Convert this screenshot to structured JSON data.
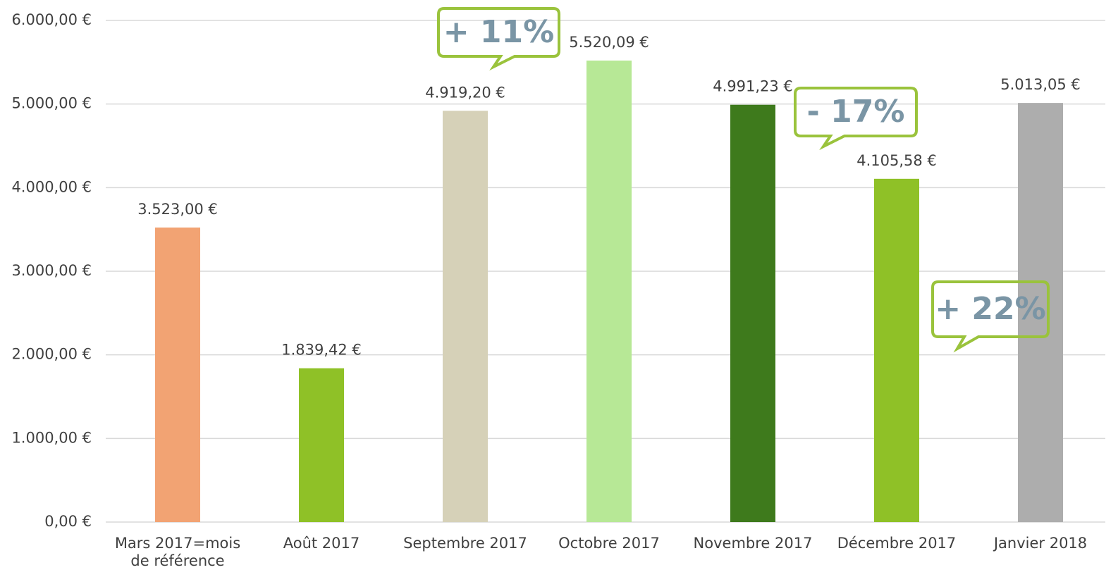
{
  "chart_data": {
    "type": "bar",
    "categories": [
      "Mars 2017=mois de référence",
      "Août 2017",
      "Septembre 2017",
      "Octobre 2017",
      "Novembre 2017",
      "Décembre 2017",
      "Janvier 2018"
    ],
    "values": [
      3523.0,
      1839.42,
      4919.2,
      5520.09,
      4991.23,
      4105.58,
      5013.05
    ],
    "value_labels": [
      "3.523,00 €",
      "1.839,42 €",
      "4.919,20 €",
      "5.520,09 €",
      "4.991,23 €",
      "4.105,58 €",
      "5.013,05 €"
    ],
    "colors": [
      "#f2a373",
      "#8fc127",
      "#d6d1b8",
      "#b7e896",
      "#3e7a1c",
      "#8fc127",
      "#adadad"
    ],
    "ylim": [
      0,
      6000
    ],
    "yticks": [
      {
        "value": 0,
        "label": "0,00 €"
      },
      {
        "value": 1000,
        "label": "1.000,00 €"
      },
      {
        "value": 2000,
        "label": "2.000,00 €"
      },
      {
        "value": 3000,
        "label": "3.000,00 €"
      },
      {
        "value": 4000,
        "label": "4.000,00 €"
      },
      {
        "value": 5000,
        "label": "5.000,00 €"
      },
      {
        "value": 6000,
        "label": "6.000,00 €"
      }
    ],
    "grid": true,
    "annotations": [
      "+ 11%",
      "- 17%",
      "+ 22%"
    ]
  }
}
